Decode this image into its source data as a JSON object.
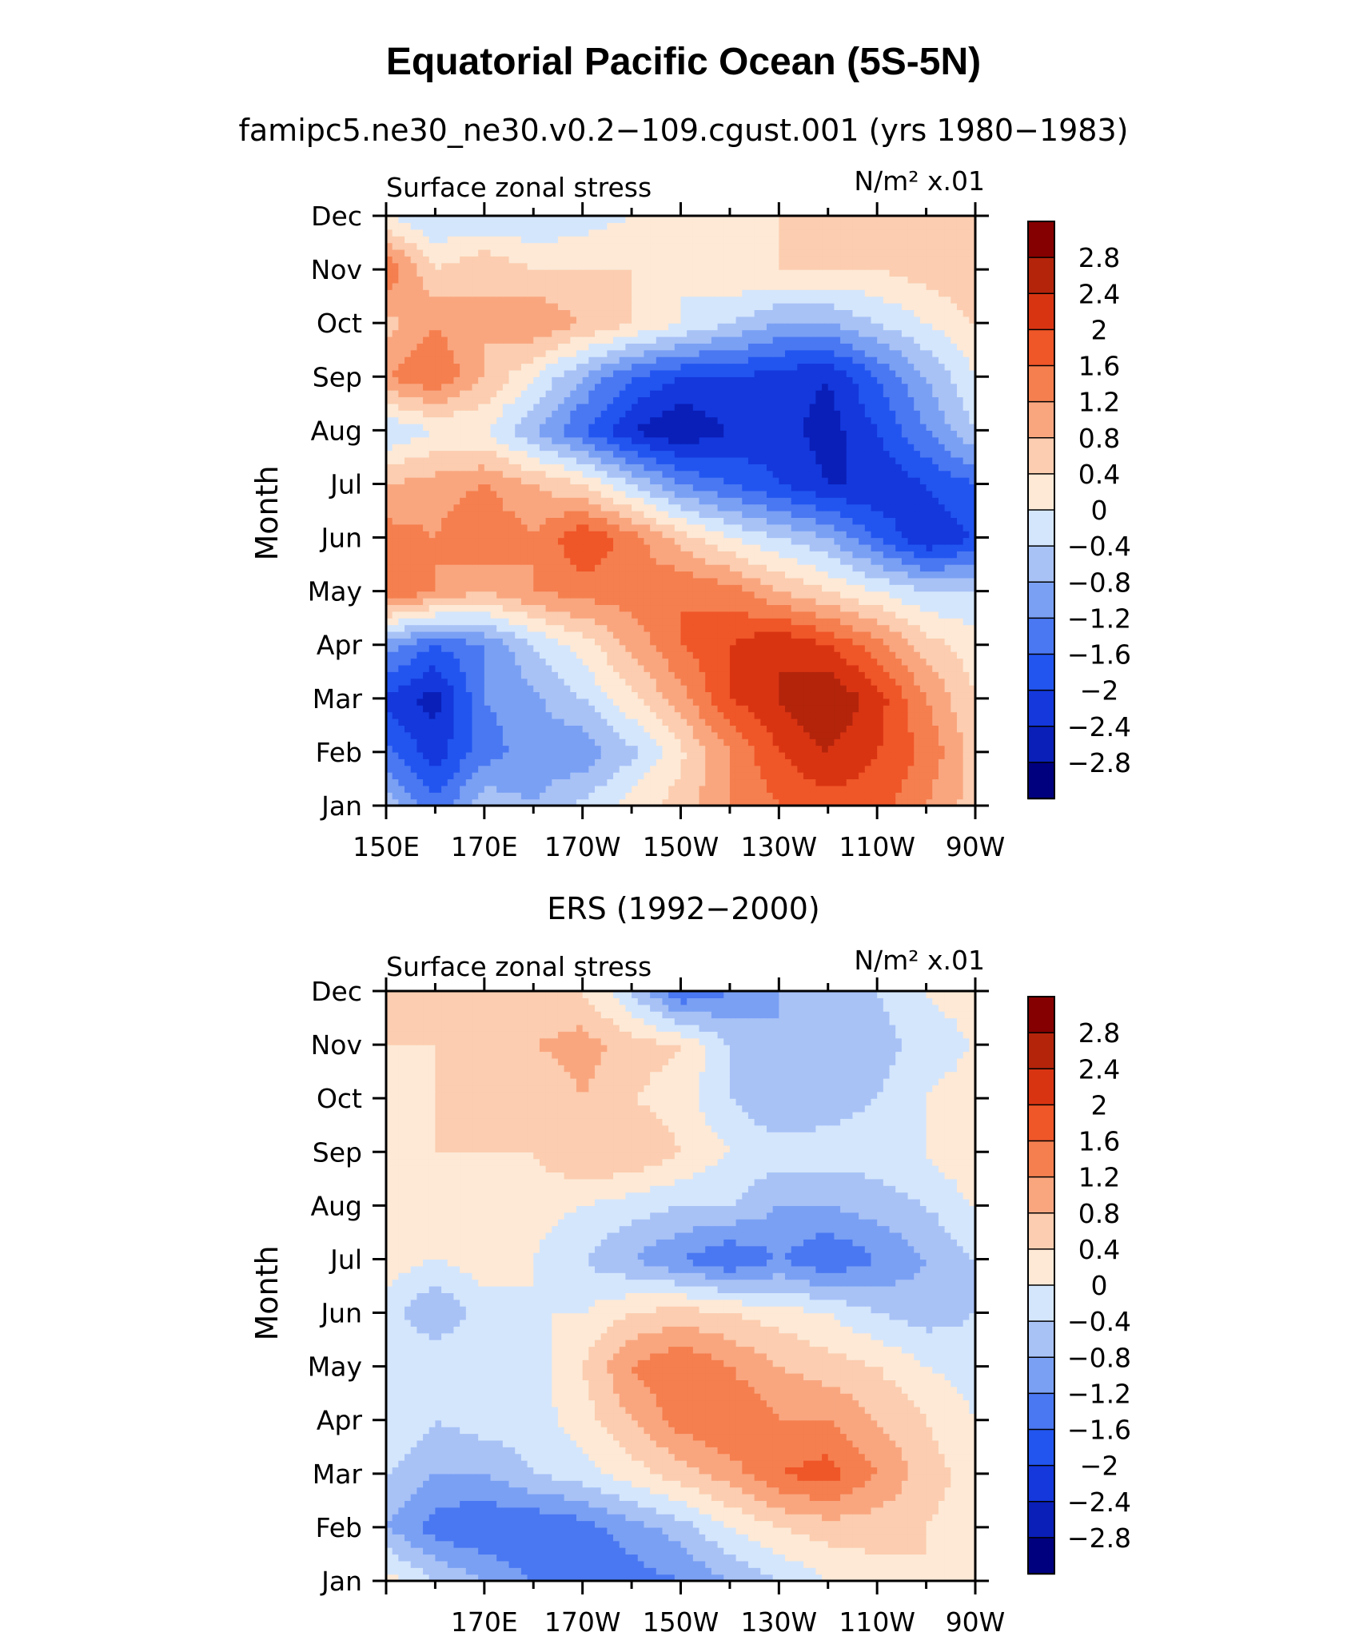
{
  "title": "Equatorial Pacific Ocean (5S-5N)",
  "colors": {
    "levels": [
      -2.8,
      -2.4,
      -2,
      -1.6,
      -1.2,
      -0.8,
      -0.4,
      0,
      0.4,
      0.8,
      1.2,
      1.6,
      2,
      2.4,
      2.8
    ],
    "fills": [
      "#00007f",
      "#0a1fb8",
      "#1438dc",
      "#2255f0",
      "#4a78f2",
      "#7aa0f4",
      "#a8c2f6",
      "#d4e6fc",
      "#fde9d6",
      "#fccdb0",
      "#f9a67f",
      "#f57f4f",
      "#ef5628",
      "#d93412",
      "#b3240b",
      "#850000"
    ]
  },
  "colorbar_labels": [
    "2.8",
    "2.4",
    "2",
    "1.6",
    "1.2",
    "0.8",
    "0.4",
    "0",
    "−0.4",
    "−0.8",
    "−1.2",
    "−1.6",
    "−2",
    "−2.4",
    "−2.8"
  ],
  "chart_data": [
    {
      "type": "heatmap",
      "subtitle": "famipc5.ne30_ne30.v0.2−109.cgust.001 (yrs 1980−1983)",
      "left_label": "Surface zonal stress",
      "right_label": "N/m² x.01",
      "ylabel": "Month",
      "x_ticklabels": [
        "150E",
        "170E",
        "170W",
        "150W",
        "130W",
        "110W",
        "90W"
      ],
      "y_ticklabels": [
        "Jan",
        "Feb",
        "Mar",
        "Apr",
        "May",
        "Jun",
        "Jul",
        "Aug",
        "Sep",
        "Oct",
        "Nov",
        "Dec"
      ],
      "x": [
        150,
        160,
        170,
        180,
        190,
        200,
        210,
        220,
        230,
        240,
        250,
        260,
        270
      ],
      "rows": [
        [
          -0.5,
          -1.5,
          -0.5,
          -0.8,
          -0.3,
          0.2,
          0.6,
          1.2,
          1.6,
          1.8,
          1.8,
          1.2,
          0.6
        ],
        [
          -1.5,
          -2.2,
          -1.4,
          -1.0,
          -1.1,
          -0.5,
          0.3,
          1.2,
          2.0,
          2.4,
          2.0,
          1.5,
          0.6
        ],
        [
          -2.1,
          -2.6,
          -1.2,
          -0.9,
          -0.4,
          0.3,
          1.0,
          2.0,
          2.4,
          2.8,
          2.2,
          1.2,
          0.4
        ],
        [
          -1.0,
          -1.6,
          -1.2,
          -0.4,
          0.2,
          0.9,
          1.6,
          2.0,
          2.4,
          2.0,
          1.4,
          0.6,
          0.2
        ],
        [
          1.6,
          1.2,
          0.8,
          1.2,
          1.4,
          1.4,
          1.6,
          1.4,
          0.8,
          0.4,
          0.0,
          -0.4,
          -0.4
        ],
        [
          1.4,
          1.2,
          1.6,
          1.2,
          2.0,
          1.4,
          0.6,
          0.0,
          -0.4,
          -0.8,
          -1.6,
          -2.4,
          -2.0
        ],
        [
          0.8,
          1.0,
          1.2,
          0.8,
          0.4,
          -0.4,
          -1.2,
          -1.6,
          -2.0,
          -2.4,
          -2.4,
          -2.0,
          -1.6
        ],
        [
          -0.4,
          0.0,
          0.0,
          -0.8,
          -1.6,
          -2.4,
          -2.8,
          -2.4,
          -2.2,
          -2.6,
          -2.0,
          -1.2,
          -0.4
        ],
        [
          1.2,
          1.6,
          0.8,
          0.0,
          -0.8,
          -1.6,
          -2.0,
          -2.0,
          -2.2,
          -2.4,
          -1.6,
          -0.8,
          0.0
        ],
        [
          0.6,
          1.2,
          0.8,
          1.2,
          0.8,
          0.4,
          0.0,
          -0.4,
          -0.8,
          -0.8,
          -0.4,
          0.0,
          0.4
        ],
        [
          1.6,
          0.4,
          0.8,
          0.4,
          0.4,
          0.4,
          0.0,
          0.4,
          0.4,
          0.4,
          0.4,
          0.6,
          0.8
        ],
        [
          0.0,
          -0.4,
          -0.4,
          -0.4,
          -0.2,
          0.0,
          0.0,
          0.2,
          0.4,
          0.4,
          0.4,
          0.6,
          0.6
        ]
      ]
    },
    {
      "type": "heatmap",
      "subtitle": "ERS (1992−2000)",
      "left_label": "Surface zonal stress",
      "right_label": "N/m² x.01",
      "ylabel": "Month",
      "x_ticklabels": [
        "",
        "170E",
        "170W",
        "150W",
        "130W",
        "110W",
        "90W"
      ],
      "y_ticklabels": [
        "Jan",
        "Feb",
        "Mar",
        "Apr",
        "May",
        "Jun",
        "Jul",
        "Aug",
        "Sep",
        "Oct",
        "Nov",
        "Dec"
      ],
      "x": [
        150,
        160,
        170,
        180,
        190,
        200,
        210,
        220,
        230,
        240,
        250,
        260,
        270
      ],
      "rows": [
        [
          0.2,
          -0.4,
          -0.8,
          -1.2,
          -1.6,
          -1.4,
          -1.2,
          -0.8,
          -0.4,
          0.0,
          0.2,
          0.4,
          0.4
        ],
        [
          -0.8,
          -1.4,
          -1.6,
          -1.6,
          -1.4,
          -1.0,
          -0.6,
          0.0,
          0.4,
          0.6,
          0.6,
          0.4,
          0.2
        ],
        [
          -0.4,
          -0.8,
          -0.8,
          -0.4,
          -0.2,
          0.2,
          0.6,
          1.0,
          1.6,
          1.8,
          1.2,
          0.6,
          0.2
        ],
        [
          0.0,
          -0.4,
          -0.2,
          -0.2,
          0.2,
          0.8,
          1.4,
          1.6,
          1.2,
          1.2,
          0.8,
          0.4,
          0.0
        ],
        [
          0.0,
          0.0,
          0.0,
          -0.2,
          0.4,
          1.2,
          1.6,
          1.2,
          0.8,
          0.6,
          0.4,
          0.0,
          -0.2
        ],
        [
          -0.2,
          -0.8,
          -0.2,
          0.0,
          0.0,
          0.4,
          0.6,
          0.4,
          0.2,
          0.0,
          -0.4,
          -0.6,
          -0.4
        ],
        [
          0.2,
          0.0,
          0.2,
          0.0,
          -0.4,
          -0.8,
          -1.2,
          -1.6,
          -1.2,
          -1.6,
          -1.2,
          -0.8,
          -0.4
        ],
        [
          0.2,
          0.4,
          0.2,
          0.2,
          0.0,
          -0.2,
          -0.4,
          -0.4,
          -0.8,
          -0.8,
          -0.6,
          -0.4,
          0.0
        ],
        [
          0.2,
          0.4,
          0.4,
          0.4,
          0.8,
          0.8,
          0.4,
          0.0,
          -0.2,
          -0.2,
          -0.2,
          0.0,
          0.4
        ],
        [
          0.2,
          0.4,
          0.4,
          0.4,
          0.8,
          0.4,
          0.2,
          -0.4,
          -0.8,
          -0.6,
          -0.4,
          0.0,
          0.2
        ],
        [
          0.4,
          0.4,
          0.6,
          0.8,
          1.0,
          0.6,
          0.4,
          -0.4,
          -0.8,
          -0.8,
          -0.6,
          -0.2,
          0.0
        ],
        [
          0.4,
          0.8,
          0.6,
          0.4,
          0.4,
          -0.4,
          -1.6,
          -1.2,
          -0.8,
          -0.4,
          -0.4,
          0.0,
          0.2
        ]
      ]
    }
  ]
}
